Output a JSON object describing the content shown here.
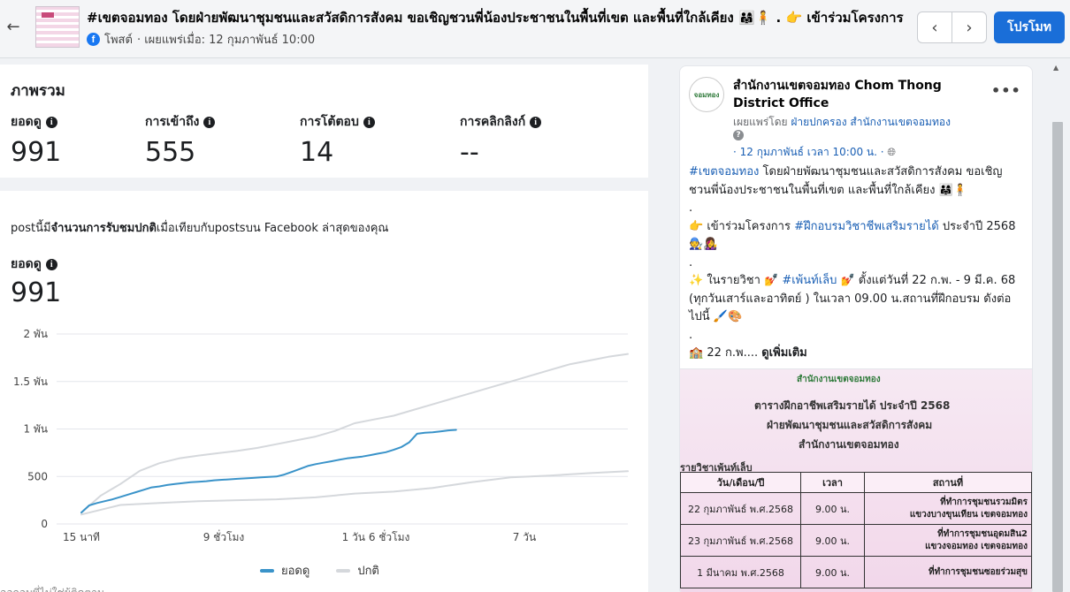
{
  "header": {
    "title": "#เขตจอมทอง โดยฝ่ายพัฒนาชุมชนและสวัสดิการสังคม ขอเชิญชวนพี่น้องประชาชนในพื้นที่เขต และพื้นที่ใกล้เคียง 👨‍👩‍👧🧍 . 👉 เข้าร่วมโครงการ",
    "post_type": "โพสต์",
    "published": "· เผยแพร่เมื่อ: 12 กุมภาพันธ์ 10:00",
    "promote_label": "โปรโมท"
  },
  "overview": {
    "title": "ภาพรวม",
    "metrics": [
      {
        "label": "ยอดดู",
        "value": "991"
      },
      {
        "label": "การเข้าถึง",
        "value": "555"
      },
      {
        "label": "การโต้ตอบ",
        "value": "14"
      },
      {
        "label": "การคลิกลิงก์",
        "value": "--"
      }
    ]
  },
  "chart_section": {
    "desc_prefix": "postนี้มี",
    "desc_bold": "จำนวนการรับชมปกติ",
    "desc_suffix": "เมื่อเทียบกับpostsบน Facebook ล่าสุดของคุณ",
    "metric_label": "ยอดดู",
    "metric_value": "991",
    "footnote": "ลอกอมพี่ไม่ใช่ผู้ติดตาม"
  },
  "chart_data": {
    "type": "line",
    "x_tick_labels": [
      "15 นาที",
      "9 ชั่วโมง",
      "1 วัน 6 ชั่วโมง",
      "7 วัน"
    ],
    "y_tick_labels": [
      "0",
      "500",
      "1 พัน",
      "1.5 พัน",
      "2 พัน"
    ],
    "ylim": [
      0,
      2000
    ],
    "grid": true,
    "legend_position": "bottom",
    "series": [
      {
        "name": "ยอดดู",
        "color": "#3a93c9",
        "x": [
          0,
          2,
          4,
          6,
          8,
          10,
          12,
          14,
          16,
          18,
          20,
          22,
          24,
          26,
          28,
          30,
          32,
          34,
          36,
          38,
          40,
          42,
          44,
          46,
          48,
          50,
          52,
          54,
          56,
          58,
          60,
          62,
          64,
          66,
          68,
          70,
          72,
          74,
          76,
          78,
          80,
          82,
          84,
          86,
          88,
          90,
          92,
          94,
          96
        ],
        "values": [
          120,
          195,
          220,
          240,
          260,
          285,
          310,
          335,
          360,
          385,
          395,
          410,
          420,
          430,
          440,
          445,
          450,
          460,
          465,
          470,
          475,
          480,
          485,
          490,
          495,
          500,
          520,
          550,
          580,
          610,
          630,
          645,
          660,
          675,
          690,
          700,
          710,
          725,
          740,
          755,
          780,
          810,
          860,
          950,
          960,
          965,
          975,
          985,
          991
        ]
      },
      {
        "name": "ปกติ",
        "color": "#d5d8dc",
        "x": [
          0,
          10,
          20,
          30,
          40,
          50,
          60,
          70,
          80,
          90,
          100,
          110,
          120,
          130,
          140
        ],
        "values": [
          100,
          200,
          220,
          240,
          250,
          260,
          280,
          320,
          340,
          380,
          440,
          490,
          510,
          535,
          555
        ]
      },
      {
        "name": "",
        "color": "#d5d8dc",
        "x": [
          0,
          5,
          10,
          15,
          20,
          25,
          30,
          35,
          40,
          45,
          50,
          55,
          60,
          65,
          70,
          75,
          80,
          85,
          90,
          95,
          100,
          105,
          110,
          115,
          120,
          125,
          130,
          135,
          140
        ],
        "values": [
          120,
          300,
          420,
          560,
          640,
          690,
          720,
          745,
          770,
          800,
          840,
          880,
          920,
          980,
          1060,
          1100,
          1140,
          1200,
          1260,
          1320,
          1380,
          1440,
          1500,
          1560,
          1620,
          1680,
          1720,
          1760,
          1790
        ]
      }
    ]
  },
  "post": {
    "page_name": "สำนักงานเขตจอมทอง Chom Thong District Office",
    "avatar_text": "จอมทอง",
    "published_by_prefix": "เผยแพร่โดย ",
    "published_by": "ฝ่ายปกครอง สำนักงานเขตจอมทอง",
    "date": "· 12 กุมภาพันธ์ เวลา 10:00 น. ·",
    "body": [
      {
        "tag": "#เขตจอมทอง",
        "text": " โดยฝ่ายพัฒนาชุมชนและสวัสดิการสังคม ขอเชิญชวนพี่น้องประชาชนในพื้นที่เขต และพื้นที่ใกล้เคียง 👨‍👩‍👧🧍"
      },
      {
        "text": "."
      },
      {
        "pre": "👉 เข้าร่วมโครงการ ",
        "tag": "#ฝึกอบรมวิชาชีพเสริมรายได้",
        "text": " ประจำปี 2568 🧑‍🔧👩‍🎤"
      },
      {
        "text": "."
      },
      {
        "pre": "✨ ในรายวิชา 💅 ",
        "tag": "#เพ้นท์เล็บ",
        "text": " 💅 ตั้งแต่วันที่ 22 ก.พ. - 9 มี.ค. 68 (ทุกวันเสาร์และอาทิตย์ ) ในเวลา 09.00 น.สถานที่ฝึกอบรม ดังต่อไปนี้ 🖌️🎨"
      },
      {
        "text": "."
      }
    ],
    "last_line": "🏫 22 ก.พ.... ",
    "see_more": "ดูเพิ่มเติม",
    "poster": {
      "org": "สำนักงานเขตจอมทอง",
      "line1": "ตารางฝึกอาชีพเสริมรายได้ ประจำปี 2568",
      "line2": "ฝ่ายพัฒนาชุมชนและสวัสดิการสังคม",
      "line3": "สำนักงานเขตจอมทอง",
      "subject": "รายวิชาเพ้นท์เล็บ",
      "headers": [
        "วัน/เดือน/ปี",
        "เวลา",
        "สถานที่"
      ],
      "rows": [
        {
          "date": "22 กุมภาพันธ์ พ.ศ.2568",
          "time": "9.00 น.",
          "place1": "ที่ทำการชุมชนรวมมิตร",
          "place2": "แขวงบางขุนเทียน เขตจอมทอง"
        },
        {
          "date": "23 กุมภาพันธ์ พ.ศ.2568",
          "time": "9.00 น.",
          "place1": "ที่ทำการชุมชนอุดมสิน2",
          "place2": "แขวงจอมทอง เขตจอมทอง"
        },
        {
          "date": "1 มีนาคม พ.ศ.2568",
          "time": "9.00 น.",
          "place1": "ที่ทำการชุมชนซอยร่วมสุข",
          "place2": ""
        }
      ]
    }
  }
}
